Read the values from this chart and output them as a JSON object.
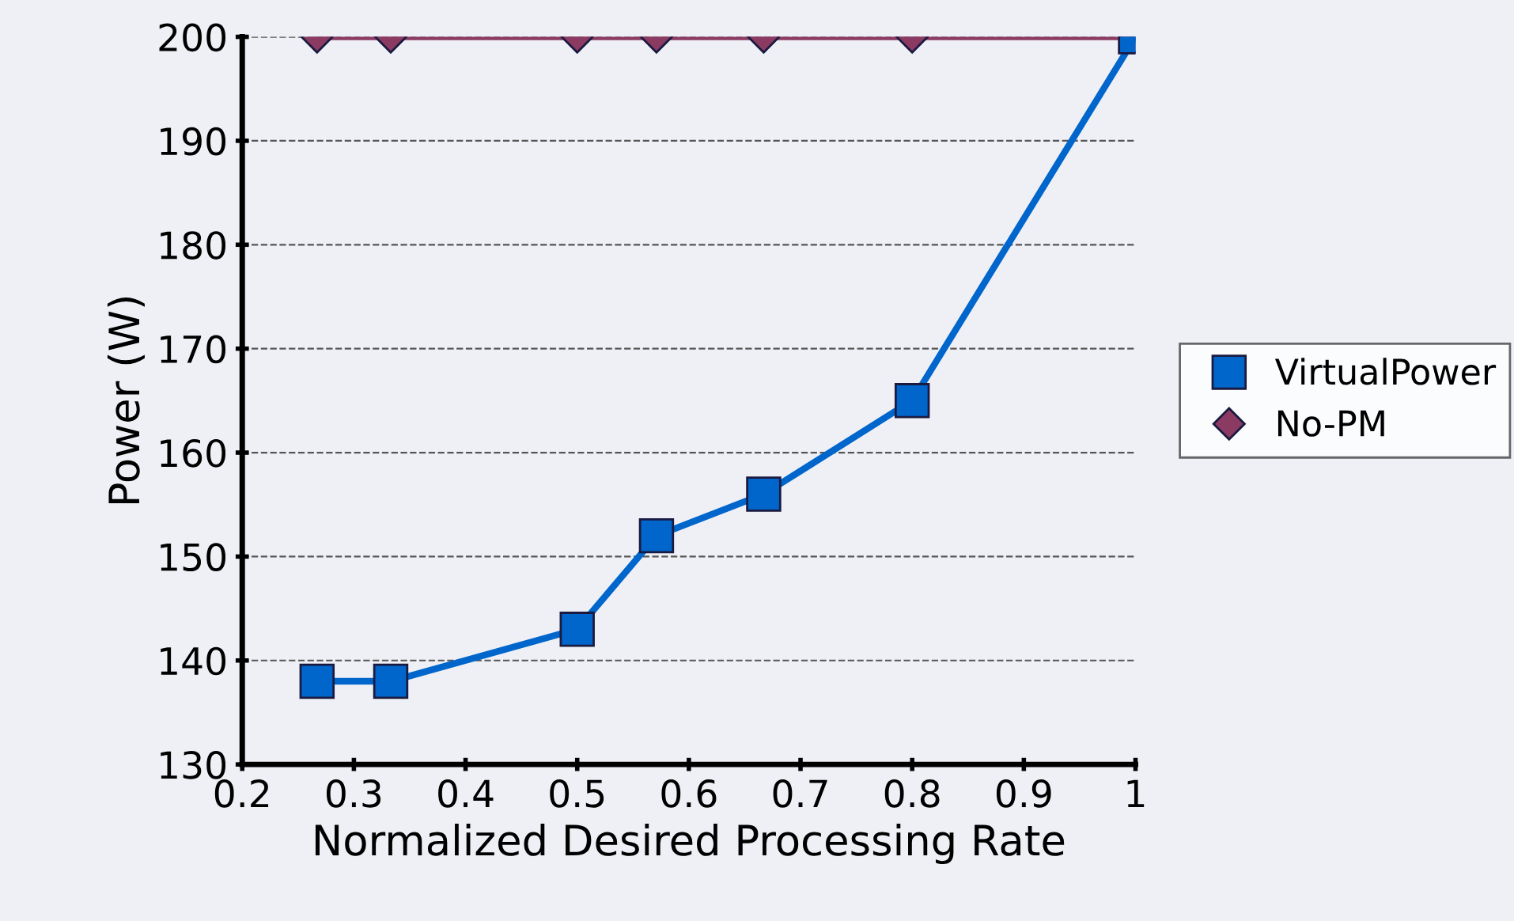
{
  "chart_data": {
    "type": "line",
    "xlabel": "Normalized Desired Processing Rate",
    "ylabel": "Power (W)",
    "x": [
      0.267,
      0.333,
      0.5,
      0.571,
      0.667,
      0.8,
      1
    ],
    "series": [
      {
        "name": "No-PM",
        "color": "#8b3a62",
        "marker": "diamond",
        "values": [
          200,
          200,
          200,
          200,
          200,
          200,
          200
        ]
      },
      {
        "name": "VirtualPower",
        "color": "#0066cc",
        "marker": "square",
        "values": [
          138,
          138,
          143,
          152,
          156,
          165,
          200
        ]
      }
    ],
    "xlim": [
      0.2,
      1
    ],
    "xticks": [
      0.2,
      0.3,
      0.4,
      0.5,
      0.6,
      0.7,
      0.8,
      0.9,
      1
    ],
    "ylim": [
      130,
      200
    ],
    "yticks": [
      130,
      140,
      150,
      160,
      170,
      180,
      190,
      200
    ],
    "grid": "y",
    "legend": "right",
    "line_style": "solid"
  }
}
